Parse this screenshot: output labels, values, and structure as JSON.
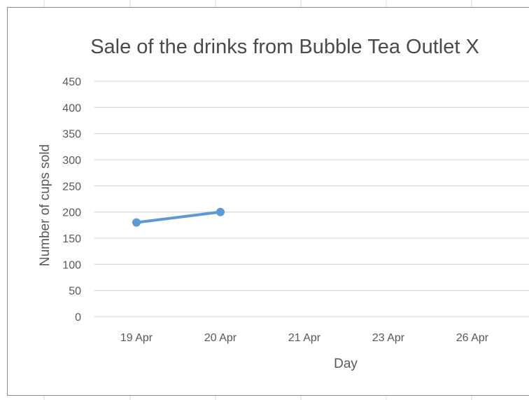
{
  "chart_data": {
    "type": "line",
    "title": "Sale of the drinks from Bubble Tea Outlet X",
    "xlabel": "Day",
    "ylabel": "Number of cups sold",
    "categories": [
      "19 Apr",
      "20 Apr",
      "21 Apr",
      "23 Apr",
      "26 Apr"
    ],
    "series": [
      {
        "values": [
          180,
          200,
          null,
          null,
          null
        ],
        "color": "#5b9bd5"
      }
    ],
    "ylim": [
      0,
      450
    ],
    "yticks": [
      0,
      50,
      100,
      150,
      200,
      250,
      300,
      350,
      400,
      450
    ],
    "grid": true,
    "legend": "none"
  }
}
